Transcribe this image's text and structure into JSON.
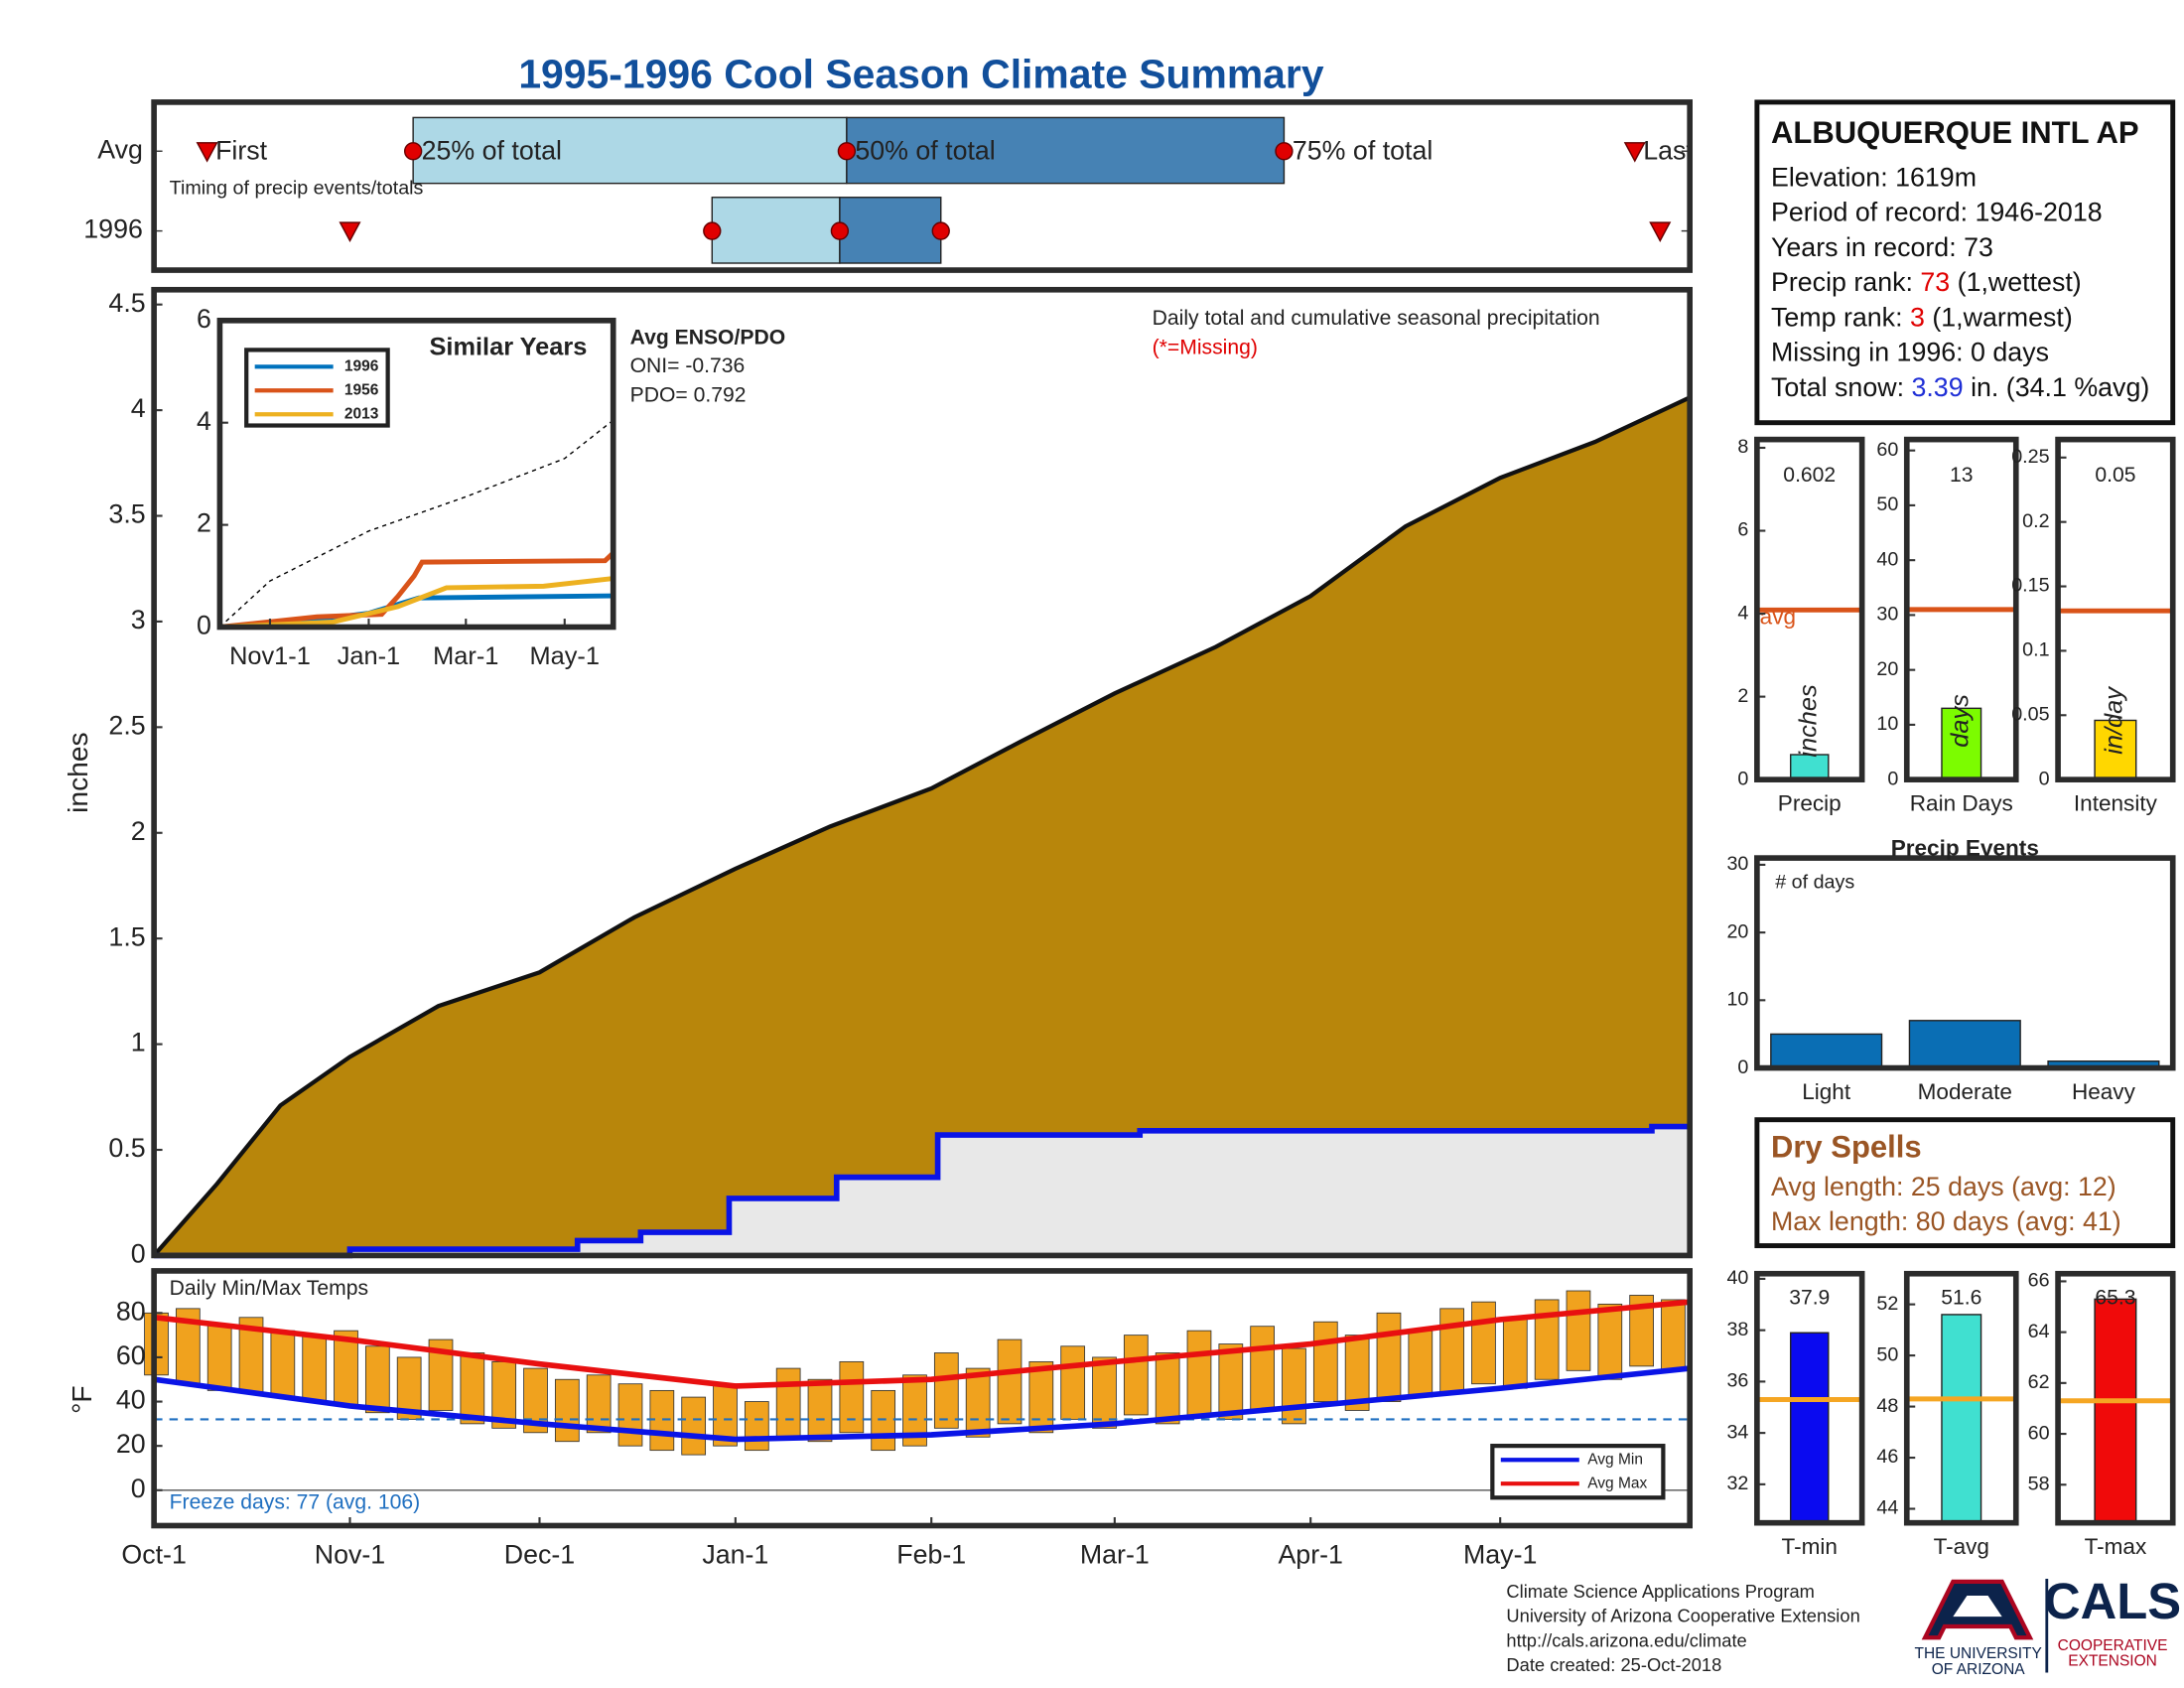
{
  "title": "1995-1996 Cool Season Climate Summary",
  "chart_data": [
    {
      "type": "timeline",
      "subtitle": "Timing of precip events/totals",
      "xlim": [
        0,
        243
      ],
      "rows": [
        {
          "name": "Avg",
          "first": 8.4,
          "q25": 41,
          "q50": 109.6,
          "q75": 178.8,
          "last": 234.3
        },
        {
          "name": "1996",
          "first": 31,
          "q25": 88.3,
          "q50": 108.5,
          "q75": 124.5,
          "last": 238.3
        }
      ],
      "labels": {
        "first": "First",
        "q25": "25% of total",
        "q50": "50% of total",
        "q75": "75% of total",
        "last": "Last"
      },
      "colors": {
        "light": "#add8e6",
        "dark": "#4682b4",
        "marker": "#e00000"
      }
    },
    {
      "type": "area",
      "ylabel": "inches",
      "note": "Daily total and cumulative seasonal precipitation",
      "missing_note": "(*=Missing)",
      "enso_title": "Avg ENSO/PDO",
      "oni": "ONI= -0.736",
      "pdo": "PDO= 0.792",
      "xlim": [
        0,
        243
      ],
      "ylim": [
        0,
        4.57
      ],
      "yticks": [
        0,
        0.5,
        1,
        1.5,
        2,
        2.5,
        3,
        3.5,
        4,
        4.5
      ],
      "series": [
        {
          "color": "#b8860b",
          "x": [
            0,
            10,
            20,
            31,
            45,
            61,
            76,
            92,
            107,
            123,
            137,
            152,
            168,
            183,
            198,
            213,
            228,
            243
          ],
          "values": [
            0,
            0.34,
            0.71,
            0.94,
            1.18,
            1.34,
            1.6,
            1.83,
            2.03,
            2.21,
            2.43,
            2.66,
            2.88,
            3.12,
            3.45,
            3.68,
            3.85,
            4.06
          ]
        },
        {
          "color": "#0a14e6",
          "fill": "#e8e8e8",
          "x": [
            0,
            31,
            31,
            67,
            67,
            77,
            77,
            91,
            91,
            108,
            108,
            124,
            124,
            156,
            156,
            237,
            237,
            243
          ],
          "values": [
            0,
            0,
            0.03,
            0.03,
            0.07,
            0.07,
            0.11,
            0.11,
            0.27,
            0.27,
            0.37,
            0.37,
            0.57,
            0.57,
            0.59,
            0.59,
            0.61,
            0.61
          ]
        }
      ]
    },
    {
      "type": "range",
      "title": "Daily Min/Max Temps",
      "ylabel": "°F",
      "freeze_note": "Freeze days: 77 (avg. 106)",
      "freeze": 32,
      "xlim": [
        0,
        243
      ],
      "ylim": [
        -16,
        99
      ],
      "yticks": [
        0,
        20,
        40,
        60,
        80
      ],
      "xticks": [
        {
          "value": 0,
          "label": "Oct-1"
        },
        {
          "value": 31,
          "label": "Nov-1"
        },
        {
          "value": 61,
          "label": "Dec-1"
        },
        {
          "value": 92,
          "label": "Jan-1"
        },
        {
          "value": 123,
          "label": "Feb-1"
        },
        {
          "value": 152,
          "label": "Mar-1"
        },
        {
          "value": 183,
          "label": "Apr-1"
        },
        {
          "value": 213,
          "label": "May-1"
        }
      ],
      "bar_color": "#f0a21e",
      "x": [
        0,
        5,
        10,
        15,
        20,
        25,
        30,
        35,
        40,
        45,
        50,
        55,
        60,
        65,
        70,
        75,
        80,
        85,
        90,
        95,
        100,
        105,
        110,
        115,
        120,
        125,
        130,
        135,
        140,
        145,
        150,
        155,
        160,
        165,
        170,
        175,
        180,
        185,
        190,
        195,
        200,
        205,
        210,
        215,
        220,
        225,
        230,
        235,
        240
      ],
      "max": [
        80,
        82,
        75,
        78,
        72,
        70,
        72,
        65,
        60,
        68,
        62,
        58,
        55,
        50,
        52,
        48,
        45,
        42,
        48,
        40,
        55,
        50,
        58,
        45,
        52,
        62,
        55,
        68,
        58,
        65,
        60,
        70,
        62,
        72,
        66,
        74,
        64,
        76,
        70,
        80,
        72,
        82,
        85,
        78,
        86,
        90,
        84,
        88,
        86
      ],
      "min": [
        52,
        48,
        45,
        44,
        42,
        40,
        38,
        35,
        32,
        36,
        30,
        28,
        26,
        22,
        26,
        20,
        18,
        16,
        20,
        18,
        24,
        22,
        26,
        18,
        20,
        28,
        24,
        30,
        26,
        32,
        28,
        34,
        30,
        34,
        32,
        36,
        30,
        40,
        36,
        40,
        42,
        44,
        48,
        46,
        50,
        54,
        50,
        56,
        54
      ],
      "series": [
        {
          "name": "Avg Min",
          "color": "#0a14e6",
          "x": [
            0,
            31,
            61,
            92,
            123,
            152,
            183,
            213,
            243
          ],
          "values": [
            50,
            38,
            30,
            23,
            25,
            30,
            38,
            46,
            55
          ]
        },
        {
          "name": "Avg Max",
          "color": "#e81010",
          "x": [
            0,
            31,
            61,
            92,
            123,
            152,
            183,
            213,
            243
          ],
          "values": [
            78,
            68,
            57,
            47,
            50,
            58,
            66,
            77,
            85
          ]
        }
      ]
    },
    {
      "type": "line",
      "title": "Similar Years",
      "xlim": [
        0,
        243
      ],
      "ylim": [
        0,
        6
      ],
      "yticks": [
        0,
        2,
        4,
        6
      ],
      "xticks": [
        {
          "value": 31,
          "label": "Nov1-1"
        },
        {
          "value": 92,
          "label": "Jan-1"
        },
        {
          "value": 152,
          "label": "Mar-1"
        },
        {
          "value": 213,
          "label": "May-1"
        }
      ],
      "average": {
        "color": "#000000",
        "x": [
          0,
          31,
          92,
          152,
          213,
          243
        ],
        "values": [
          0,
          0.9,
          1.88,
          2.55,
          3.3,
          4.05
        ]
      },
      "series": [
        {
          "name": "1996",
          "color": "#0072bd",
          "x": [
            0,
            31,
            92,
            123,
            243
          ],
          "values": [
            0,
            0.03,
            0.27,
            0.57,
            0.61
          ]
        },
        {
          "name": "1956",
          "color": "#d95319",
          "x": [
            0,
            60,
            100,
            110,
            120,
            125,
            238,
            243
          ],
          "values": [
            0,
            0.2,
            0.25,
            0.6,
            1.0,
            1.27,
            1.3,
            1.45
          ]
        },
        {
          "name": "2013",
          "color": "#edb120",
          "x": [
            0,
            70,
            110,
            140,
            200,
            243
          ],
          "values": [
            0,
            0.1,
            0.4,
            0.77,
            0.8,
            0.95
          ]
        }
      ]
    },
    {
      "type": "bar",
      "categories": [
        "Precip"
      ],
      "values": [
        0.602
      ],
      "ylabel": "inches",
      "avg": 4.09,
      "avg_label": "avg",
      "avg_color": "#d95319",
      "color": "#40e0d0",
      "ylim": [
        0,
        8.2
      ],
      "yticks": [
        0,
        2,
        4,
        6,
        8
      ]
    },
    {
      "type": "bar",
      "categories": [
        "Rain Days"
      ],
      "values": [
        13
      ],
      "ylabel": "days",
      "avg": 31,
      "avg_color": "#d95319",
      "color": "#7cfc00",
      "ylim": [
        0,
        62
      ],
      "yticks": [
        0,
        10,
        20,
        30,
        40,
        50,
        60
      ]
    },
    {
      "type": "bar",
      "categories": [
        "Intensity"
      ],
      "values": [
        0.046
      ],
      "value_labels": [
        "0.05"
      ],
      "ylabel": "in/day",
      "avg": 0.131,
      "avg_color": "#d95319",
      "color": "#ffd700",
      "ylim": [
        0,
        0.264
      ],
      "yticks": [
        0,
        0.05,
        0.1,
        0.15,
        0.2,
        0.25
      ]
    },
    {
      "type": "bar",
      "title": "Precip Events",
      "note": "# of days",
      "categories": [
        "Light",
        "Moderate",
        "Heavy"
      ],
      "values": [
        5,
        7,
        1
      ],
      "color": "#0a6eb4",
      "ylim": [
        0,
        31
      ],
      "yticks": [
        0,
        10,
        20,
        30
      ]
    },
    {
      "type": "bar",
      "categories": [
        "T-min"
      ],
      "values": [
        37.9
      ],
      "avg": 35.3,
      "avg_color": "#f5a623",
      "color": "#0a0af0",
      "ylim": [
        30.5,
        40.2
      ],
      "yticks": [
        32,
        34,
        36,
        38,
        40
      ]
    },
    {
      "type": "bar",
      "categories": [
        "T-avg"
      ],
      "values": [
        51.6
      ],
      "avg": 48.3,
      "avg_color": "#f5a623",
      "color": "#40e0d0",
      "ylim": [
        43.45,
        53.2
      ],
      "yticks": [
        44,
        46,
        48,
        50,
        52
      ]
    },
    {
      "type": "bar",
      "categories": [
        "T-max"
      ],
      "values": [
        65.3
      ],
      "avg": 61.3,
      "avg_color": "#f5a623",
      "color": "#f00a0a",
      "ylim": [
        56.5,
        66.3
      ],
      "yticks": [
        58,
        60,
        62,
        64,
        66
      ]
    }
  ],
  "station": {
    "title": "ALBUQUERQUE INTL AP",
    "elevation": "Elevation: 1619m",
    "period": "Period of record: 1946-2018",
    "years": "Years in record: 73",
    "precip_rank": {
      "label": "Precip rank:",
      "value": 73,
      "note": "(1,wettest)"
    },
    "temp_rank": {
      "label": "Temp rank:",
      "value": 3,
      "note": "(1,warmest)"
    },
    "missing": "Missing in 1996: 0 days",
    "snow": {
      "label": "Total snow:",
      "value": 3.39,
      "note": "in. (34.1 %avg)"
    }
  },
  "dry_spells": {
    "title": "Dry Spells",
    "avg": "Avg length: 25 days (avg: 12)",
    "max": "Max length: 80 days (avg: 41)"
  },
  "footer": [
    "Climate Science Applications Program",
    "University of Arizona Cooperative Extension",
    "http://cals.arizona.edu/climate",
    " Date created: 25-Oct-2018"
  ],
  "logo": {
    "university": [
      "THE UNIVERSITY",
      "OF ARIZONA"
    ],
    "cals": "CALS",
    "extension": [
      "COOPERATIVE",
      "EXTENSION"
    ]
  }
}
